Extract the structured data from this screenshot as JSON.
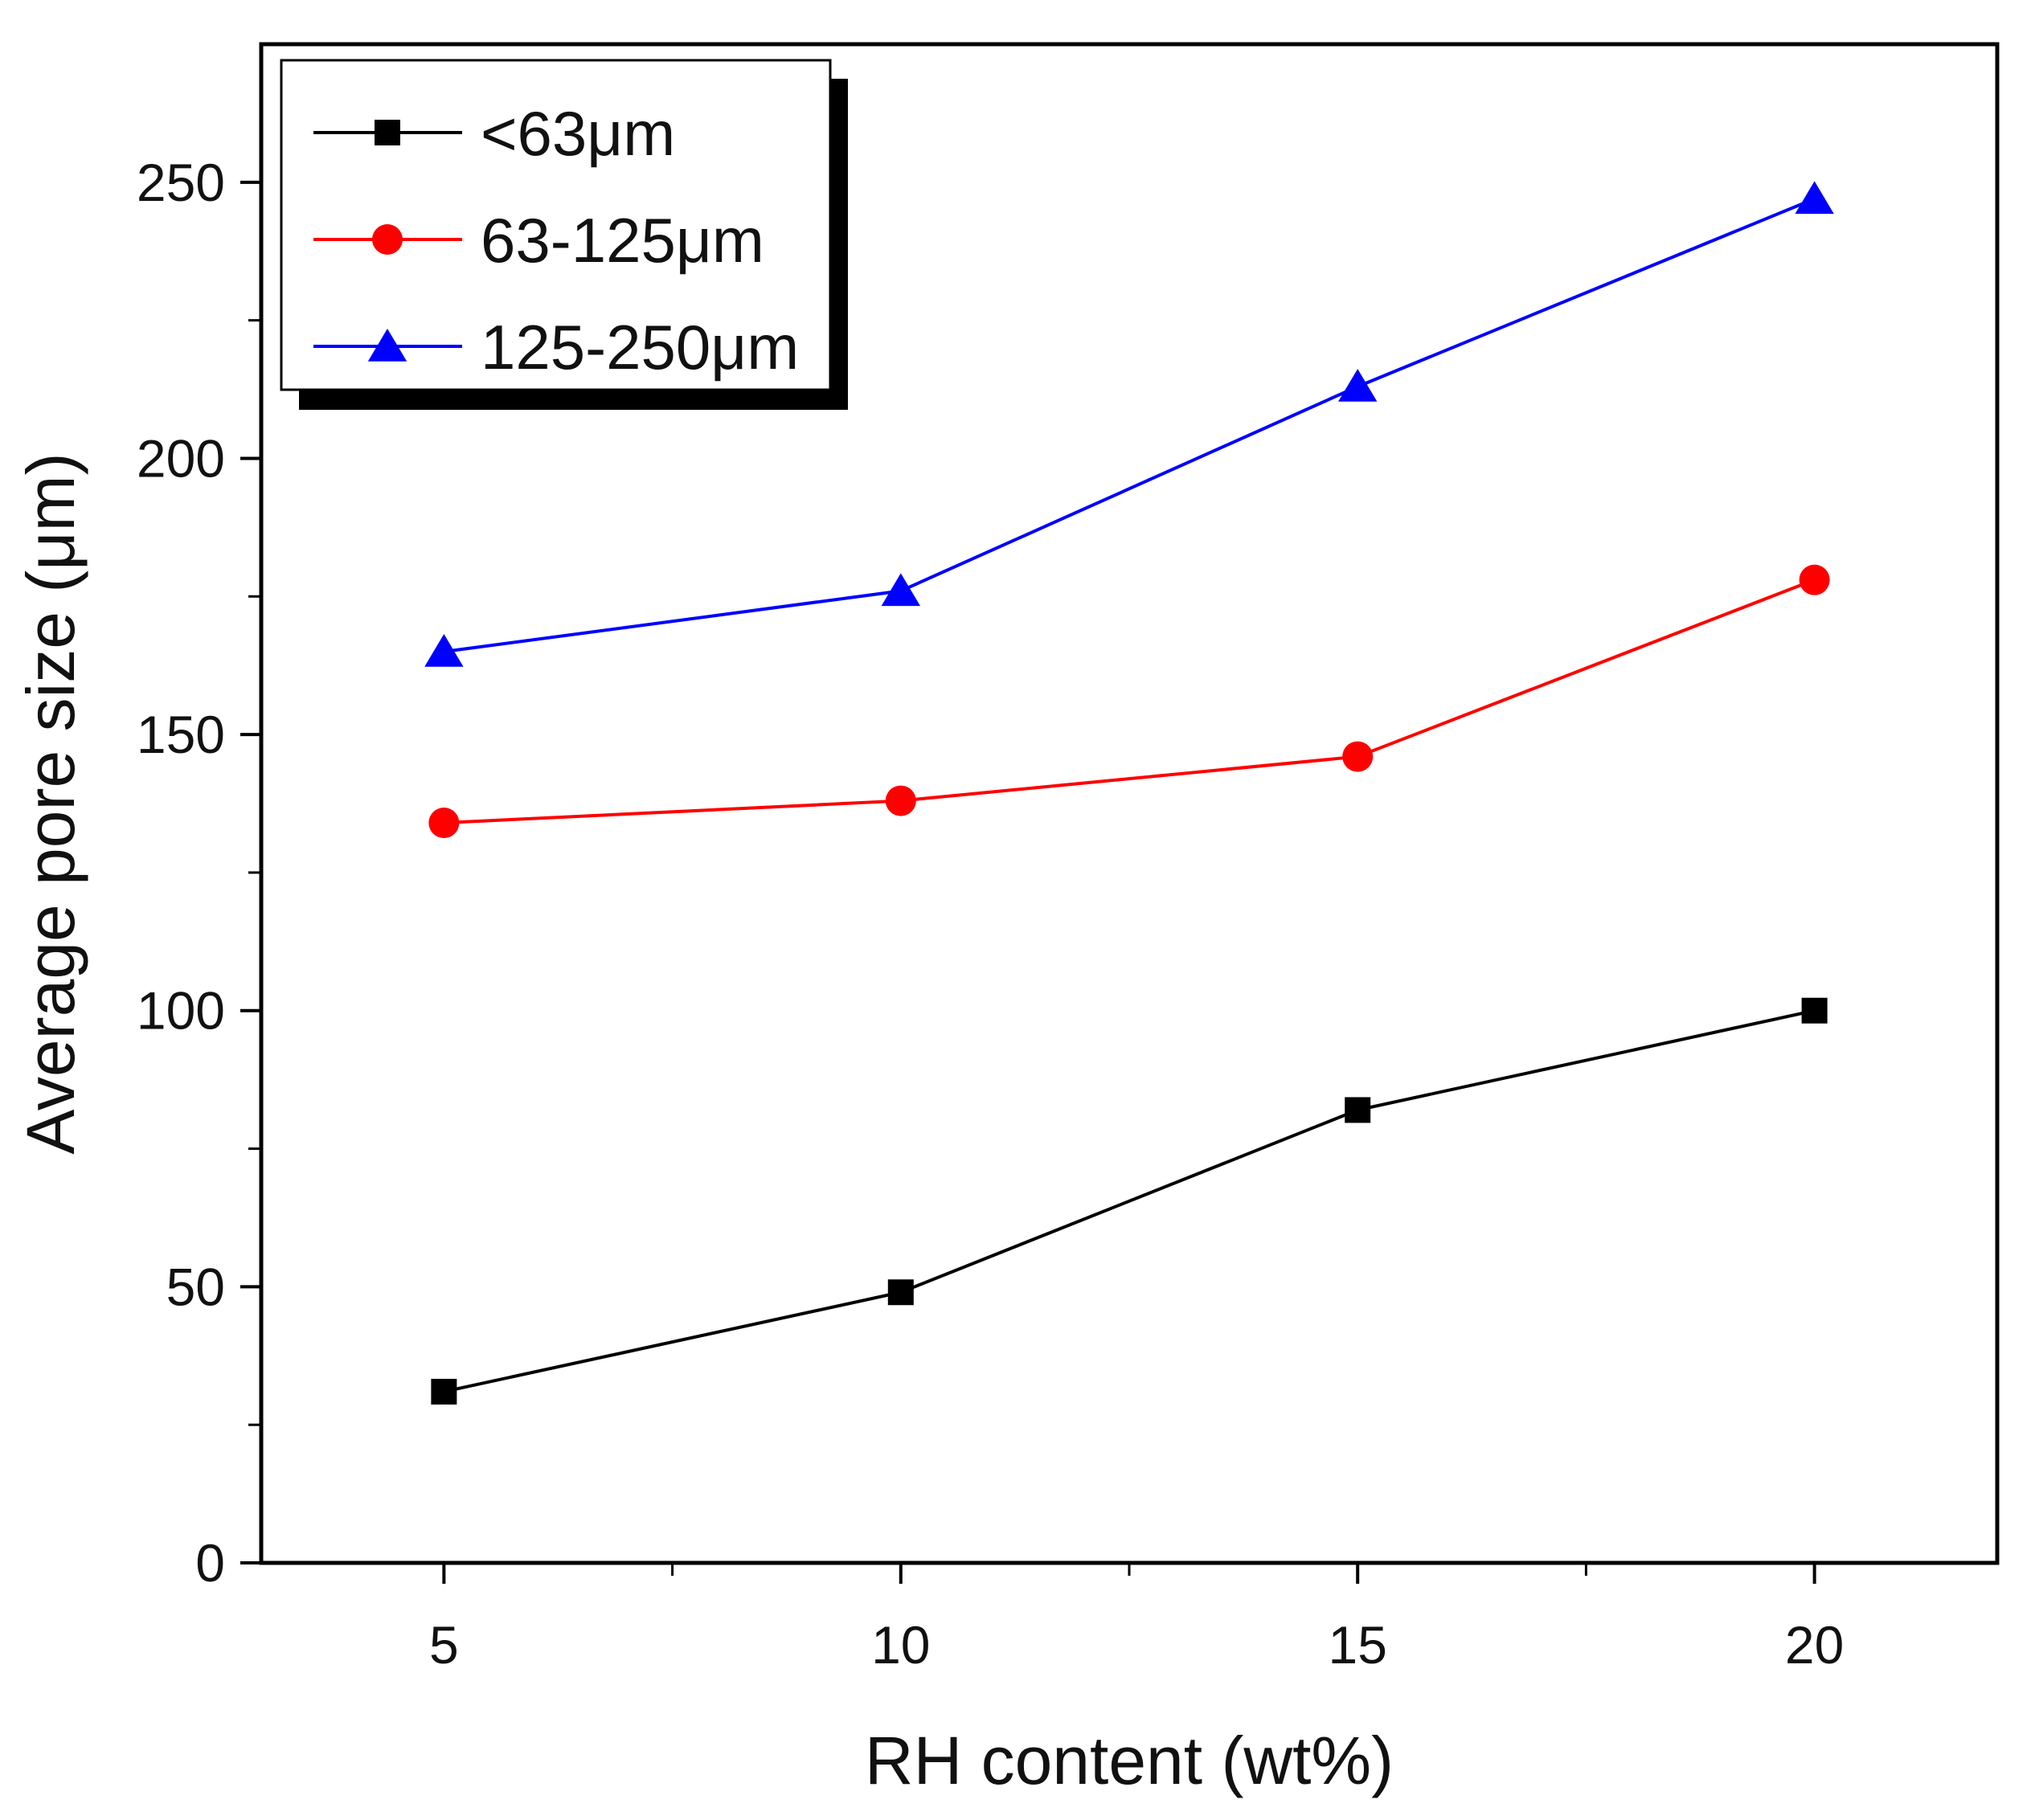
{
  "chart_data": {
    "type": "line",
    "title": "",
    "xlabel": "RH content (wt%)",
    "ylabel": "Average pore size (μm)",
    "x": [
      5,
      10,
      15,
      20
    ],
    "xlim": [
      3,
      22
    ],
    "ylim": [
      0,
      275
    ],
    "xticks": [
      5,
      10,
      15,
      20
    ],
    "xtick_labels": [
      "5",
      "10",
      "15",
      "20"
    ],
    "xminor": [
      7.5,
      12.5,
      17.5
    ],
    "yticks": [
      0,
      50,
      100,
      150,
      200,
      250
    ],
    "ytick_labels": [
      "0",
      "50",
      "100",
      "150",
      "200",
      "250"
    ],
    "yminor": [
      25,
      75,
      125,
      175,
      225
    ],
    "grid": false,
    "legend_position": "top-left",
    "series": [
      {
        "name": "<63μm",
        "color": "#000000",
        "marker": "square",
        "values": [
          31,
          49,
          82,
          100
        ]
      },
      {
        "name": "63-125μm",
        "color": "#ff0000",
        "marker": "circle",
        "values": [
          134,
          138,
          146,
          178
        ]
      },
      {
        "name": "125-250μm",
        "color": "#0000ff",
        "marker": "triangle",
        "values": [
          165,
          176,
          213,
          247
        ]
      }
    ]
  }
}
